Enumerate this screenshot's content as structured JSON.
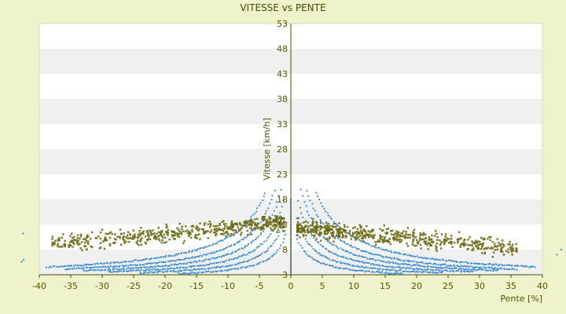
{
  "chart_data": {
    "type": "scatter",
    "title": "VITESSE vs PENTE",
    "xlabel": "Pente [%]",
    "ylabel": "Vitesse [km/h]",
    "xlim": [
      -40,
      40
    ],
    "ylim": [
      3,
      53
    ],
    "x_ticks": [
      "-40",
      "-35",
      "-30",
      "-25",
      "-20",
      "-15",
      "-10",
      "-5",
      "0",
      "5",
      "10",
      "15",
      "20",
      "25",
      "30",
      "35",
      "40"
    ],
    "y_ticks": [
      "3",
      "8",
      "13",
      "18",
      "23",
      "28",
      "33",
      "38",
      "43",
      "48",
      "53"
    ],
    "grid": "horizontal alternating bands",
    "legend": "none",
    "colors": {
      "background": "#eef3cc",
      "plot_band_light": "#ffffff",
      "plot_band_dark": "#f0f0f0",
      "axis": "#4b4b00",
      "text": "#555500",
      "series_blue": "#3a8bd6",
      "series_olive": "#8d8a1c",
      "series_olive_edge": "#3e3e00"
    },
    "series": [
      {
        "description_only_for_rendering": "",
        "curves": [
          {
            "k": 95,
            "x_min": 1.8,
            "x_max": 39
          },
          {
            "k": 72,
            "x_min": 1.6,
            "x_max": 36
          },
          {
            "k": 56,
            "x_min": 1.4,
            "x_max": 33
          },
          {
            "k": 42,
            "x_min": 1.2,
            "x_max": 29
          },
          {
            "k": 30,
            "x_min": 1.0,
            "x_max": 24
          },
          {
            "k": 20,
            "x_min": 0.8,
            "x_max": 18
          }
        ],
        "offset": 1.5,
        "y_max": 20,
        "color": "#3a8bd6"
      },
      {
        "clusters": [
          {
            "x_from": -38,
            "x_to": -1,
            "y_center": 9.5,
            "y_spread": 3.5,
            "count": 520
          },
          {
            "x_from": 1,
            "x_to": 36,
            "y_center": 8.5,
            "y_spread": 3.5,
            "count": 560
          }
        ],
        "color": "#8d8a1c"
      }
    ]
  }
}
